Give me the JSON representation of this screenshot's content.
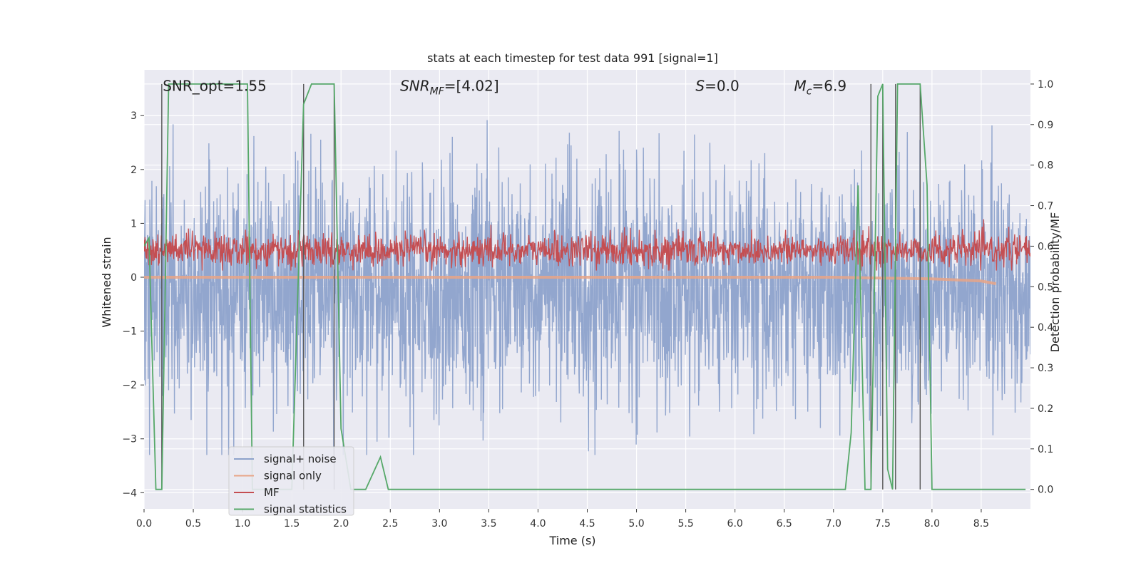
{
  "chart_data": {
    "type": "line",
    "title": "stats at each timestep for test data 991 [signal=1]",
    "xlabel": "Time (s)",
    "ylabel": "Whitened strain",
    "y2label": "Detection probability/MF",
    "xlim": [
      0.0,
      9.0
    ],
    "ylim": [
      -4.3,
      3.85
    ],
    "y2lim": [
      -0.048,
      1.035
    ],
    "xticks": [
      "0.0",
      "0.5",
      "1.0",
      "1.5",
      "2.0",
      "2.5",
      "3.0",
      "3.5",
      "4.0",
      "4.5",
      "5.0",
      "5.5",
      "6.0",
      "6.5",
      "7.0",
      "7.5",
      "8.0",
      "8.5"
    ],
    "xtick_values": [
      0.0,
      0.5,
      1.0,
      1.5,
      2.0,
      2.5,
      3.0,
      3.5,
      4.0,
      4.5,
      5.0,
      5.5,
      6.0,
      6.5,
      7.0,
      7.5,
      8.0,
      8.5
    ],
    "yticks": [
      "3",
      "2",
      "1",
      "0",
      "−1",
      "−2",
      "−3",
      "−4"
    ],
    "ytick_values": [
      3,
      2,
      1,
      0,
      -1,
      -2,
      -3,
      -4
    ],
    "y2ticks": [
      "1.0",
      "0.9",
      "0.8",
      "0.7",
      "0.6",
      "0.5",
      "0.4",
      "0.3",
      "0.2",
      "0.1",
      "0.0"
    ],
    "y2tick_values": [
      1.0,
      0.9,
      0.8,
      0.7,
      0.6,
      0.5,
      0.4,
      0.3,
      0.2,
      0.1,
      0.0
    ],
    "grid": true,
    "legend_position": "lower-left",
    "annotations": [
      {
        "text": "SNR_opt=1.55",
        "x": 0.19,
        "y": 3.55
      },
      {
        "text": "SNR_MF=[4.02]",
        "x": 2.6,
        "y": 3.55
      },
      {
        "text": "S=0.0",
        "x": 5.6,
        "y": 3.55
      },
      {
        "text": "M_c=6.9",
        "x": 6.6,
        "y": 3.55
      }
    ],
    "series": [
      {
        "name": "signal+ noise",
        "axis": "left",
        "color": "#8da2cb",
        "kind": "noise",
        "range_x": [
          0.0,
          9.0
        ],
        "typical_spread": [
          -1.8,
          1.3
        ],
        "extreme_range": [
          -3.3,
          3.3
        ]
      },
      {
        "name": "signal only",
        "axis": "left",
        "color": "#e8a487",
        "kind": "chirp",
        "x": [
          0.0,
          2.0,
          4.0,
          6.0,
          7.0,
          8.0,
          8.5,
          8.65
        ],
        "y": [
          0.0,
          0.0,
          0.0,
          0.0,
          0.0,
          -0.03,
          -0.07,
          -0.12
        ]
      },
      {
        "name": "MF",
        "axis": "right",
        "color": "#c44e52",
        "kind": "noise",
        "range_x": [
          0.0,
          9.0
        ],
        "typical_range": [
          0.55,
          0.63
        ],
        "extreme_range": [
          0.54,
          0.68
        ]
      },
      {
        "name": "signal statistics",
        "axis": "right",
        "color": "#55a868",
        "x": [
          0.0,
          0.05,
          0.12,
          0.18,
          0.25,
          0.3,
          1.05,
          1.1,
          1.5,
          1.62,
          1.7,
          1.93,
          2.0,
          2.1,
          2.25,
          2.4,
          2.48,
          3.5,
          7.12,
          7.18,
          7.25,
          7.32,
          7.38,
          7.45,
          7.5,
          7.55,
          7.6,
          7.65,
          7.7,
          7.88,
          7.95,
          8.0,
          8.5,
          8.95
        ],
        "y": [
          0.6,
          0.62,
          0.0,
          0.0,
          1.0,
          1.0,
          1.0,
          0.0,
          0.0,
          0.95,
          1.0,
          1.0,
          0.15,
          0.0,
          0.0,
          0.08,
          0.0,
          0.0,
          0.0,
          0.14,
          0.75,
          0.0,
          0.0,
          0.97,
          1.0,
          0.05,
          0.0,
          1.0,
          1.0,
          1.0,
          0.75,
          0.0,
          0.0,
          0.0
        ]
      },
      {
        "name": "",
        "axis": "right",
        "color": "#555555",
        "kind": "vlines",
        "x": [
          0.18,
          1.62,
          1.93,
          7.38,
          7.5,
          7.63,
          7.88
        ]
      }
    ]
  }
}
